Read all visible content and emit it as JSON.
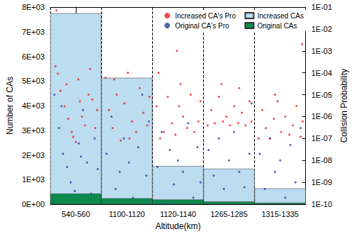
{
  "chart_data": {
    "type": "bar",
    "x_label": "Altitude(km)",
    "y_label": "Number of CAs",
    "y2_label": "Collision Probability",
    "categories": [
      "540-560",
      "1100-1120",
      "1120-1140",
      "1265-1285",
      "1315-1335"
    ],
    "xlim": [
      -0.5,
      4.5
    ],
    "ylim": [
      0,
      8000
    ],
    "yticks": [
      {
        "value": 0,
        "label": "0E+00"
      },
      {
        "value": 1000,
        "label": "1E+03"
      },
      {
        "value": 2000,
        "label": "2E+03"
      },
      {
        "value": 3000,
        "label": "3E+03"
      },
      {
        "value": 4000,
        "label": "4E+03"
      },
      {
        "value": 5000,
        "label": "5E+03"
      },
      {
        "value": 6000,
        "label": "6E+03"
      },
      {
        "value": 7000,
        "label": "7E+03"
      },
      {
        "value": 8000,
        "label": "8E+03"
      }
    ],
    "y2lim": [
      1e-10,
      0.1
    ],
    "y2ticks": [
      {
        "value": 1e-10,
        "label": "1E-10"
      },
      {
        "value": 1e-09,
        "label": "1E-09"
      },
      {
        "value": 1e-08,
        "label": "1E-08"
      },
      {
        "value": 1e-07,
        "label": "1E-07"
      },
      {
        "value": 1e-06,
        "label": "1E-06"
      },
      {
        "value": 1e-05,
        "label": "1E-05"
      },
      {
        "value": 0.0001,
        "label": "1E-04"
      },
      {
        "value": 0.001,
        "label": "1E-03"
      },
      {
        "value": 0.01,
        "label": "1E-02"
      },
      {
        "value": 0.1,
        "label": "1E-01"
      }
    ],
    "log": "y2",
    "grid": false,
    "legend": "top-right",
    "series": [
      {
        "name": "Increased CAs",
        "type": "bar",
        "color": "#bcdcf0",
        "values": [
          7750,
          5130,
          1550,
          1440,
          640
        ]
      },
      {
        "name": "Original CAs",
        "type": "bar",
        "color": "#0b8a4c",
        "values": [
          430,
          240,
          190,
          110,
          60
        ]
      },
      {
        "name": "Increased CA's Pro",
        "type": "scatter",
        "axis": "y2",
        "color": "#f01e1e",
        "marker": "circle",
        "x": [
          -0.4,
          -0.3,
          -0.22,
          -0.15,
          -0.08,
          0.0,
          0.05,
          0.12,
          0.18,
          0.25,
          0.32,
          0.38,
          0.42,
          -0.35,
          -0.05,
          0.08,
          -0.18,
          0.28,
          -0.38,
          0.58,
          0.65,
          0.72,
          0.8,
          0.88,
          0.95,
          1.02,
          1.1,
          1.18,
          1.25,
          1.32,
          1.4,
          1.44,
          0.75,
          1.05,
          1.58,
          1.65,
          1.72,
          1.8,
          1.88,
          1.95,
          2.02,
          2.1,
          2.18,
          2.25,
          2.32,
          2.4,
          2.44,
          1.62,
          2.05,
          1.98,
          2.58,
          2.65,
          2.72,
          2.8,
          2.88,
          2.95,
          3.02,
          3.1,
          3.18,
          3.25,
          3.32,
          3.4,
          3.44,
          2.85,
          3.2,
          3.58,
          3.65,
          3.72,
          3.8,
          3.88,
          3.95,
          4.02,
          4.1,
          4.18,
          4.25,
          4.32,
          4.4,
          4.44,
          4.43,
          3.9
        ],
        "values": [
          0.0002,
          1.5e-05,
          3e-06,
          8e-07,
          2e-07,
          7e-08,
          5e-05,
          1e-06,
          4e-07,
          1e-05,
          6e-06,
          3e-07,
          2e-06,
          9e-05,
          1.2e-07,
          5e-06,
          3e-05,
          0.00015,
          0.07,
          6e-05,
          2e-06,
          3e-07,
          1e-05,
          8e-08,
          4e-06,
          0.0001,
          6e-07,
          2e-07,
          2e-05,
          1.5e-06,
          4e-07,
          8e-06,
          5e-05,
          1e-07,
          3e-06,
          1e-07,
          2e-07,
          8e-06,
          5e-07,
          1.5e-07,
          3e-06,
          1e-06,
          3e-07,
          1e-05,
          2e-07,
          6e-07,
          5e-06,
          0.0001,
          3e-05,
          0.001,
          4e-07,
          2e-06,
          5e-07,
          8e-06,
          6e-07,
          1e-06,
          4e-07,
          3e-06,
          5e-07,
          1.5e-06,
          4e-07,
          5e-06,
          6e-07,
          3e-05,
          2e-05,
          1e-07,
          2e-06,
          3e-07,
          1e-07,
          8e-07,
          5e-06,
          2e-07,
          1e-06,
          1.5e-07,
          4e-07,
          3e-06,
          1.2e-07,
          6e-07,
          0.002,
          1e-05
        ]
      },
      {
        "name": "Original CA's Pro",
        "type": "scatter",
        "axis": "y2",
        "color": "#2a3c9e",
        "marker": "circle",
        "x": [
          -0.42,
          -0.33,
          -0.25,
          -0.17,
          -0.1,
          -0.02,
          0.06,
          0.14,
          0.22,
          0.3,
          0.37,
          0.43,
          -0.28,
          0.1,
          0.6,
          0.7,
          0.78,
          0.86,
          0.94,
          1.04,
          1.12,
          1.22,
          1.3,
          1.38,
          1.43,
          1.6,
          1.68,
          1.76,
          1.84,
          1.92,
          2.0,
          2.1,
          2.2,
          2.3,
          2.38,
          2.44,
          2.6,
          2.7,
          2.8,
          2.9,
          3.0,
          3.1,
          3.2,
          3.3,
          3.4,
          3.44,
          3.6,
          3.7,
          3.8,
          3.9,
          4.0,
          4.1,
          4.2,
          4.3,
          4.4
        ],
        "values": [
          1e-05,
          3e-07,
          2e-08,
          5e-09,
          1e-09,
          4e-10,
          6e-08,
          2e-06,
          8e-09,
          3e-10,
          1e-07,
          4e-09,
          3e-06,
          1.5e-08,
          2e-08,
          1e-06,
          5e-10,
          3e-09,
          1e-07,
          8e-09,
          2e-10,
          4e-08,
          1e-05,
          2e-09,
          6e-07,
          5e-09,
          2e-07,
          1e-10,
          3e-08,
          8e-10,
          1e-08,
          3e-09,
          5e-07,
          2e-10,
          4e-08,
          1e-09,
          3e-08,
          2e-09,
          1e-07,
          5e-10,
          1e-08,
          2e-07,
          3e-09,
          6e-10,
          2e-08,
          4e-06,
          2e-08,
          5e-10,
          1e-07,
          3e-09,
          1e-08,
          2e-10,
          5e-08,
          1e-09,
          3e-07
        ]
      }
    ]
  }
}
